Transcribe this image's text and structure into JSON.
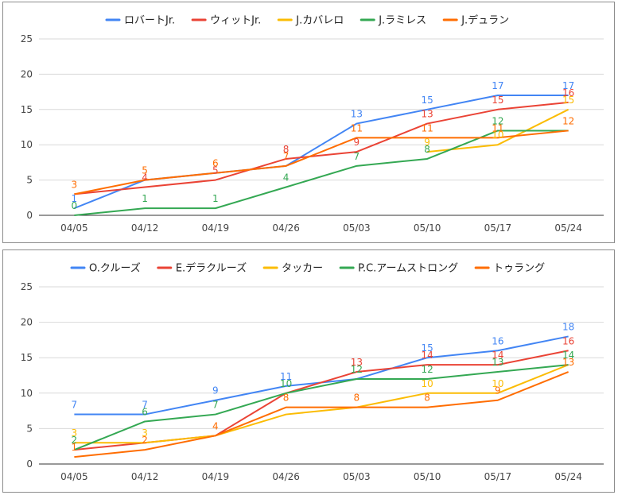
{
  "colors": {
    "blue": "#4285f4",
    "red": "#ea4335",
    "yellow": "#fbbc04",
    "green": "#34a853",
    "orange": "#ff6d01",
    "grid": "#d9d9d9",
    "axis_text": "#444444"
  },
  "chart_data": [
    {
      "type": "line",
      "categories": [
        "04/05",
        "04/12",
        "04/19",
        "04/26",
        "05/03",
        "05/10",
        "05/17",
        "05/24"
      ],
      "ylim": [
        0,
        25
      ],
      "yticks": [
        0,
        5,
        10,
        15,
        20,
        25
      ],
      "grid": true,
      "legend_position": "top",
      "series": [
        {
          "name": "ロバートJr.",
          "color": "#4285f4",
          "values": [
            1,
            5,
            6,
            7,
            13,
            15,
            17,
            17
          ],
          "labels": [
            "1",
            null,
            null,
            null,
            "13",
            "15",
            "17",
            "17"
          ]
        },
        {
          "name": "ウィットJr.",
          "color": "#ea4335",
          "values": [
            3,
            4,
            5,
            8,
            9,
            13,
            15,
            16
          ],
          "labels": [
            null,
            "4",
            "5",
            "8",
            "9",
            "13",
            "15",
            "16"
          ]
        },
        {
          "name": "J.カバレロ",
          "color": "#fbbc04",
          "values": [
            null,
            null,
            null,
            null,
            null,
            9,
            10,
            15
          ],
          "labels": [
            null,
            null,
            null,
            null,
            null,
            "9",
            "10",
            "15"
          ]
        },
        {
          "name": "J.ラミレス",
          "color": "#34a853",
          "values": [
            0,
            1,
            1,
            4,
            7,
            8,
            12,
            12
          ],
          "labels": [
            "0",
            "1",
            "1",
            "4",
            "7",
            "8",
            "12",
            null
          ]
        },
        {
          "name": "J.デュラン",
          "color": "#ff6d01",
          "values": [
            3,
            5,
            6,
            7,
            11,
            11,
            11,
            12
          ],
          "labels": [
            "3",
            "5",
            "6",
            "7",
            "11",
            "11",
            "11",
            "12"
          ]
        }
      ]
    },
    {
      "type": "line",
      "categories": [
        "04/05",
        "04/12",
        "04/19",
        "04/26",
        "05/03",
        "05/10",
        "05/17",
        "05/24"
      ],
      "ylim": [
        0,
        25
      ],
      "yticks": [
        0,
        5,
        10,
        15,
        20,
        25
      ],
      "grid": true,
      "legend_position": "top",
      "series": [
        {
          "name": "O.クルーズ",
          "color": "#4285f4",
          "values": [
            7,
            7,
            9,
            11,
            12,
            15,
            16,
            18
          ],
          "labels": [
            "7",
            "7",
            "9",
            "11",
            null,
            "15",
            "16",
            "18"
          ]
        },
        {
          "name": "E.デラクルーズ",
          "color": "#ea4335",
          "values": [
            2,
            3,
            4,
            10,
            13,
            14,
            14,
            16
          ],
          "labels": [
            null,
            null,
            null,
            null,
            "13",
            "14",
            "14",
            "16"
          ]
        },
        {
          "name": "タッカー",
          "color": "#fbbc04",
          "values": [
            3,
            3,
            4,
            7,
            8,
            10,
            10,
            14
          ],
          "labels": [
            "3",
            "3",
            null,
            null,
            null,
            "10",
            "10",
            null
          ]
        },
        {
          "name": "P.C.アームストロング",
          "color": "#34a853",
          "values": [
            2,
            6,
            7,
            10,
            12,
            12,
            13,
            14
          ],
          "labels": [
            "2",
            "6",
            "7",
            "10",
            "12",
            "12",
            "13",
            "14"
          ]
        },
        {
          "name": "トゥラング",
          "color": "#ff6d01",
          "values": [
            1,
            2,
            4,
            8,
            8,
            8,
            9,
            13
          ],
          "labels": [
            "1",
            "2",
            "4",
            "8",
            "8",
            "8",
            "9",
            "13"
          ]
        }
      ]
    }
  ]
}
